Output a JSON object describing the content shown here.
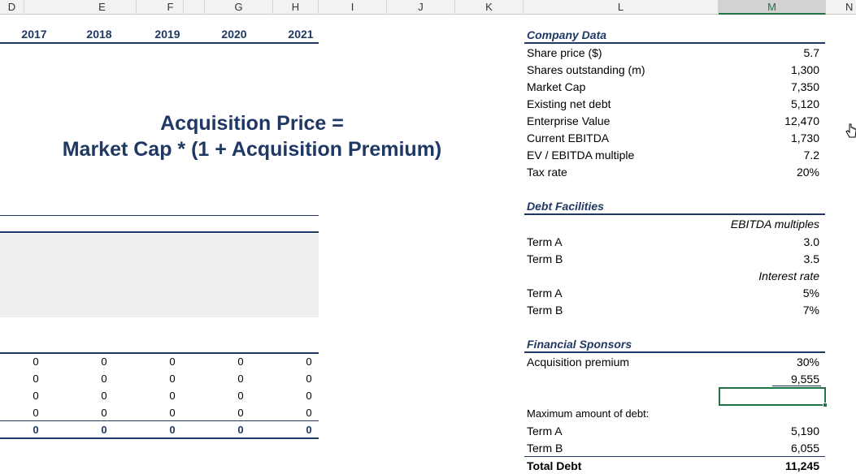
{
  "columns": [
    {
      "letter": "D",
      "left": 0,
      "width": 28
    },
    {
      "letter": "E",
      "left": 28,
      "width": 168
    },
    {
      "letter": "F",
      "left": 196,
      "width": 0
    },
    {
      "letter": "G",
      "left": 0,
      "width": 0
    }
  ],
  "col_headers": [
    "D",
    "E",
    "F",
    "G",
    "H",
    "I",
    "J",
    "K",
    "L",
    "M",
    "N"
  ],
  "selected_column": "M",
  "years": [
    "2017",
    "2018",
    "2019",
    "2020",
    "2021"
  ],
  "formula": {
    "line1": "Acquisition Price =",
    "line2": "Market Cap * (1 + Acquisition Premium)"
  },
  "zero_rows": {
    "regular": [
      [
        "0",
        "0",
        "0",
        "0",
        "0"
      ],
      [
        "0",
        "0",
        "0",
        "0",
        "0"
      ],
      [
        "0",
        "0",
        "0",
        "0",
        "0"
      ],
      [
        "0",
        "0",
        "0",
        "0",
        "0"
      ]
    ],
    "total": [
      "0",
      "0",
      "0",
      "0",
      "0"
    ]
  },
  "company_data": {
    "title": "Company Data",
    "rows": [
      {
        "label": "Share price ($)",
        "value": "5.7"
      },
      {
        "label": "Shares outstanding (m)",
        "value": "1,300"
      },
      {
        "label": "Market Cap",
        "value": "7,350"
      },
      {
        "label": "Existing net debt",
        "value": "5,120"
      },
      {
        "label": "Enterprise Value",
        "value": "12,470"
      },
      {
        "label": "Current EBITDA",
        "value": "1,730"
      },
      {
        "label": "EV / EBITDA multiple",
        "value": "7.2"
      },
      {
        "label": "Tax rate",
        "value": "20%"
      }
    ]
  },
  "debt_facilities": {
    "title": "Debt Facilities",
    "multiples_header": "EBITDA multiples",
    "multiples": [
      {
        "label": "Term A",
        "value": "3.0"
      },
      {
        "label": "Term B",
        "value": "3.5"
      }
    ],
    "interest_header": "Interest rate",
    "interest": [
      {
        "label": "Term A",
        "value": "5%"
      },
      {
        "label": "Term B",
        "value": "7%"
      }
    ]
  },
  "financial_sponsors": {
    "title": "Financial Sponsors",
    "premium_label": "Acquisition premium",
    "premium_value": "30%",
    "acquisition_price_value": "9,555",
    "max_debt_label": "Maximum amount of debt:",
    "term_a_label": "Term A",
    "term_a_value": "5,190",
    "term_b_label": "Term B",
    "term_b_value": "6,055",
    "total_label": "Total Debt",
    "total_value": "11,245"
  },
  "colors": {
    "navy": "#1f3864",
    "excel_green": "#217346",
    "grey_fill": "#efefef"
  },
  "icons": {
    "cursor": "pointer-hand-icon"
  }
}
